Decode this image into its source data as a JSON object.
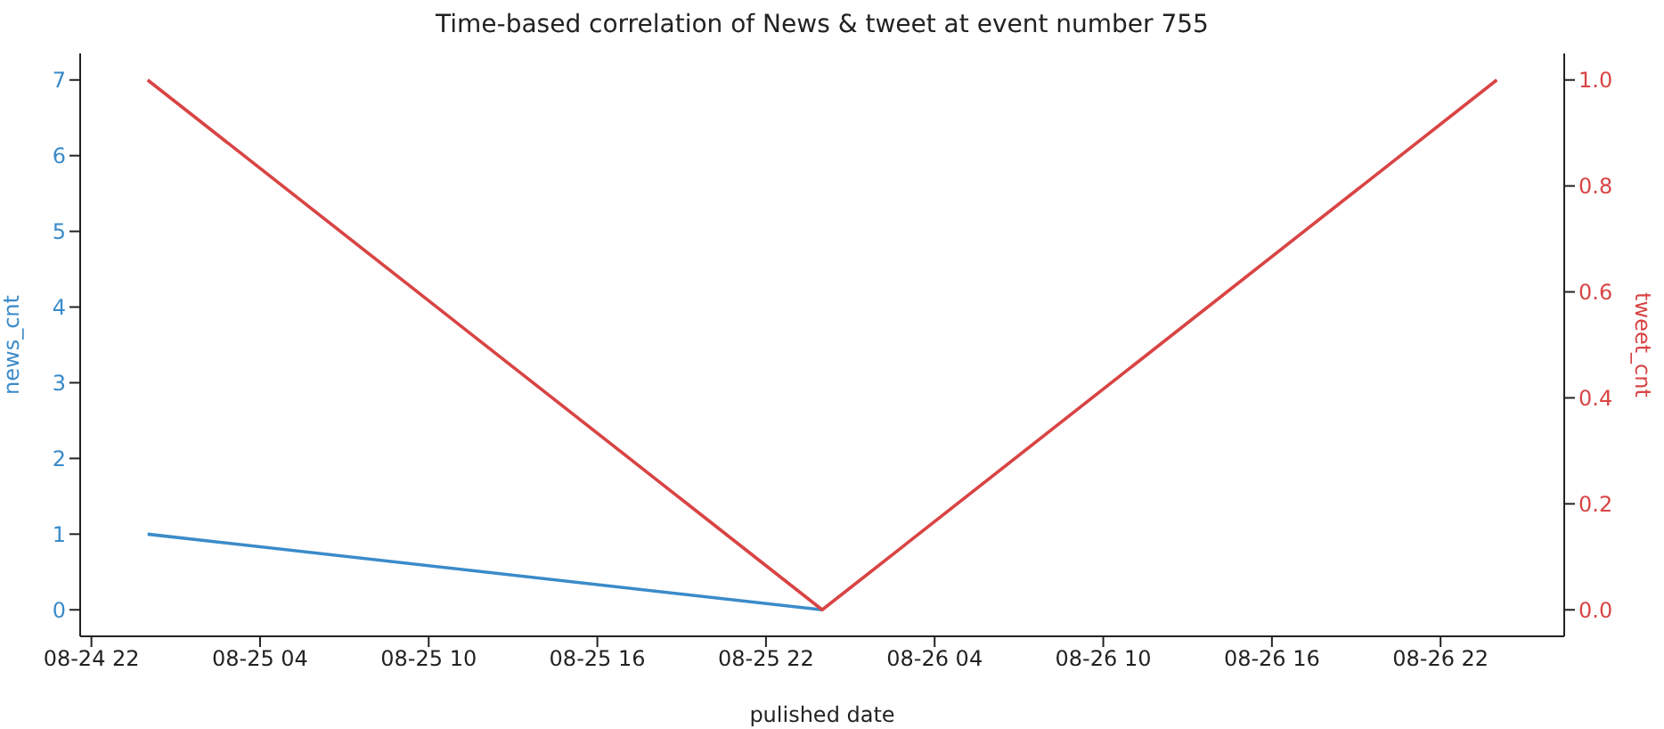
{
  "chart_data": {
    "type": "line",
    "title": "Time-based correlation of News & tweet at event number 755",
    "xlabel": "pulished date",
    "ylabel": "news_cnt",
    "y2label": "tweet_cnt",
    "x": [
      "--08-25T00:00",
      "--08-26T00:00",
      "--08-27T00:00"
    ],
    "series": [
      {
        "name": null,
        "color": "#3b8bc9",
        "values": [
          1,
          0,
          null
        ]
      },
      {
        "name": null,
        "color": "#d94444",
        "values": [
          1.0,
          0.0,
          1.0
        ],
        "axis": "y2"
      }
    ],
    "xlim": [
      "--08-24T21:36",
      "--08-27T02:24"
    ],
    "xticks": [
      {
        "value": "--08-24T22:00",
        "label": "08-24 22"
      },
      {
        "value": "--08-25T04:00",
        "label": "08-25 04"
      },
      {
        "value": "--08-25T10:00",
        "label": "08-25 10"
      },
      {
        "value": "--08-25T16:00",
        "label": "08-25 16"
      },
      {
        "value": "--08-25T22:00",
        "label": "08-25 22"
      },
      {
        "value": "--08-26T04:00",
        "label": "08-26 04"
      },
      {
        "value": "--08-26T10:00",
        "label": "08-26 10"
      },
      {
        "value": "--08-26T16:00",
        "label": "08-26 16"
      },
      {
        "value": "--08-26T22:00",
        "label": "08-26 22"
      }
    ],
    "ylim": [
      -0.35,
      7.35
    ],
    "yticks": [
      0,
      1,
      2,
      3,
      4,
      5,
      6,
      7
    ],
    "y2lim": [
      -0.05,
      1.05
    ],
    "y2ticks": [
      {
        "value": 0,
        "label": "0.0"
      },
      {
        "value": 0.2,
        "label": "0.2"
      },
      {
        "value": 0.4,
        "label": "0.4"
      },
      {
        "value": 0.6,
        "label": "0.6"
      },
      {
        "value": 0.8,
        "label": "0.8"
      },
      {
        "value": 1,
        "label": "1.0"
      }
    ],
    "grid": false,
    "legend": false
  }
}
